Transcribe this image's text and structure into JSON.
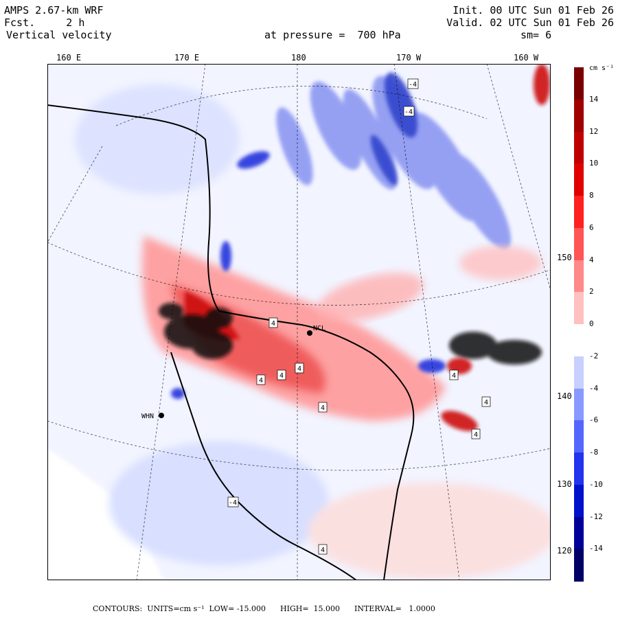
{
  "header": {
    "model": "AMPS 2.67-km WRF",
    "forecast": "Fcst.     2 h",
    "field": "Vertical velocity",
    "init": "Init. 00 UTC Sun 01 Feb 26",
    "valid": "Valid. 02 UTC Sun 01 Feb 26",
    "pressure": "at pressure =  700 hPa",
    "smoothing": "sm= 6"
  },
  "map": {
    "longitude_labels": [
      "160 E",
      "170 E",
      "180",
      "170 W",
      "160 W"
    ],
    "latitude_labels": [
      "150 W",
      "140 W",
      "130 W",
      "120 W"
    ],
    "stations": [
      {
        "name": "NCL"
      },
      {
        "name": "WHN"
      }
    ],
    "contour_labels": [
      "4",
      "4",
      "4",
      "4",
      "4",
      "4",
      "4",
      "4",
      "4",
      "-4",
      "-4",
      "-4"
    ]
  },
  "colorbar": {
    "unit": "cm s⁻¹",
    "ticks": [
      "14",
      "12",
      "10",
      "8",
      "6",
      "4",
      "2",
      "0",
      "-2",
      "-4",
      "-6",
      "-8",
      "-10",
      "-12",
      "-14"
    ],
    "colors": [
      "#7a0000",
      "#a00000",
      "#c00000",
      "#e00000",
      "#ff2020",
      "#ff5555",
      "#ff8888",
      "#ffc0c0",
      "#ffffff",
      "#c8d0ff",
      "#8899ff",
      "#5566ff",
      "#2233ee",
      "#0011cc",
      "#000099",
      "#000066"
    ]
  },
  "footer": {
    "text": "CONTOURS:  UNITS=cm s⁻¹  LOW= -15.000      HIGH=  15.000      INTERVAL=   1.0000"
  }
}
